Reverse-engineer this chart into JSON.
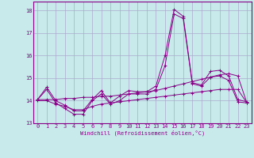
{
  "xlabel": "Windchill (Refroidissement éolien,°C)",
  "background_color": "#c8eaea",
  "line_color": "#880088",
  "grid_color": "#aaaacc",
  "xlim": [
    -0.5,
    23.5
  ],
  "ylim": [
    13.0,
    18.4
  ],
  "yticks": [
    13,
    14,
    15,
    16,
    17,
    18
  ],
  "xticks": [
    0,
    1,
    2,
    3,
    4,
    5,
    6,
    7,
    8,
    9,
    10,
    11,
    12,
    13,
    14,
    15,
    16,
    17,
    18,
    19,
    20,
    21,
    22,
    23
  ],
  "lines": [
    {
      "x": [
        0,
        1,
        2,
        3,
        4,
        5,
        6,
        7,
        8,
        9,
        10,
        11,
        12,
        13,
        14,
        15,
        16,
        17,
        18,
        19,
        20,
        21,
        22,
        23
      ],
      "y": [
        14.05,
        14.6,
        14.0,
        13.8,
        13.55,
        13.55,
        14.05,
        14.45,
        13.9,
        14.2,
        14.45,
        14.4,
        14.4,
        14.65,
        16.0,
        18.05,
        17.75,
        14.8,
        14.7,
        15.3,
        15.35,
        15.1,
        14.05,
        13.95
      ]
    },
    {
      "x": [
        0,
        1,
        2,
        3,
        4,
        5,
        6,
        7,
        8,
        9,
        10,
        11,
        12,
        13,
        14,
        15,
        16,
        17,
        18,
        19,
        20,
        21,
        22,
        23
      ],
      "y": [
        14.05,
        14.5,
        13.9,
        13.65,
        13.4,
        13.4,
        14.0,
        14.3,
        13.85,
        14.0,
        14.3,
        14.3,
        14.3,
        14.5,
        15.55,
        17.85,
        17.65,
        14.75,
        14.65,
        15.05,
        15.1,
        14.9,
        13.95,
        13.9
      ]
    },
    {
      "x": [
        0,
        1,
        2,
        3,
        4,
        5,
        6,
        7,
        8,
        9,
        10,
        11,
        12,
        13,
        14,
        15,
        16,
        17,
        18,
        19,
        20,
        21,
        22,
        23
      ],
      "y": [
        14.0,
        14.0,
        13.85,
        13.75,
        13.6,
        13.6,
        13.75,
        13.85,
        13.9,
        13.95,
        14.0,
        14.05,
        14.1,
        14.15,
        14.2,
        14.25,
        14.3,
        14.35,
        14.4,
        14.45,
        14.5,
        14.5,
        14.5,
        13.9
      ]
    },
    {
      "x": [
        0,
        1,
        2,
        3,
        4,
        5,
        6,
        7,
        8,
        9,
        10,
        11,
        12,
        13,
        14,
        15,
        16,
        17,
        18,
        19,
        20,
        21,
        22,
        23
      ],
      "y": [
        14.05,
        14.05,
        14.05,
        14.1,
        14.1,
        14.15,
        14.15,
        14.2,
        14.2,
        14.25,
        14.3,
        14.35,
        14.4,
        14.45,
        14.55,
        14.65,
        14.75,
        14.85,
        14.95,
        15.05,
        15.15,
        15.2,
        15.1,
        13.9
      ]
    }
  ]
}
